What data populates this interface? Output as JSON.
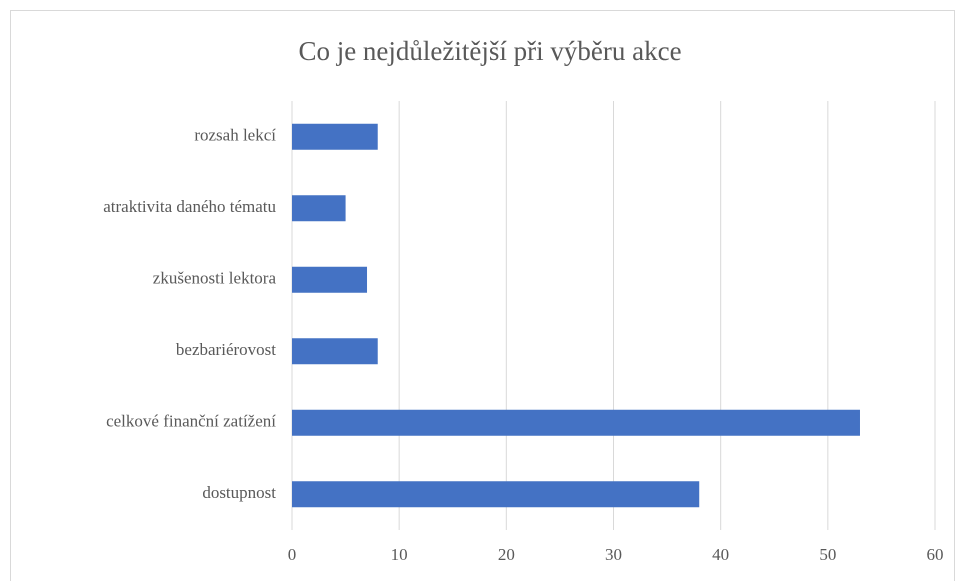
{
  "chart_data": {
    "type": "bar",
    "orientation": "horizontal",
    "title": "Co je nejdůležitější při výběru akce",
    "categories": [
      "rozsah lekcí",
      "atraktivita daného tématu",
      "zkušenosti lektora",
      "bezbariérovost",
      "celkové finanční zatížení",
      "dostupnost"
    ],
    "values": [
      8,
      5,
      7,
      8,
      53,
      38
    ],
    "color": "#4472c4",
    "xlim": [
      0,
      60
    ],
    "xticks": [
      0,
      10,
      20,
      30,
      40,
      50,
      60
    ],
    "grid": true
  }
}
